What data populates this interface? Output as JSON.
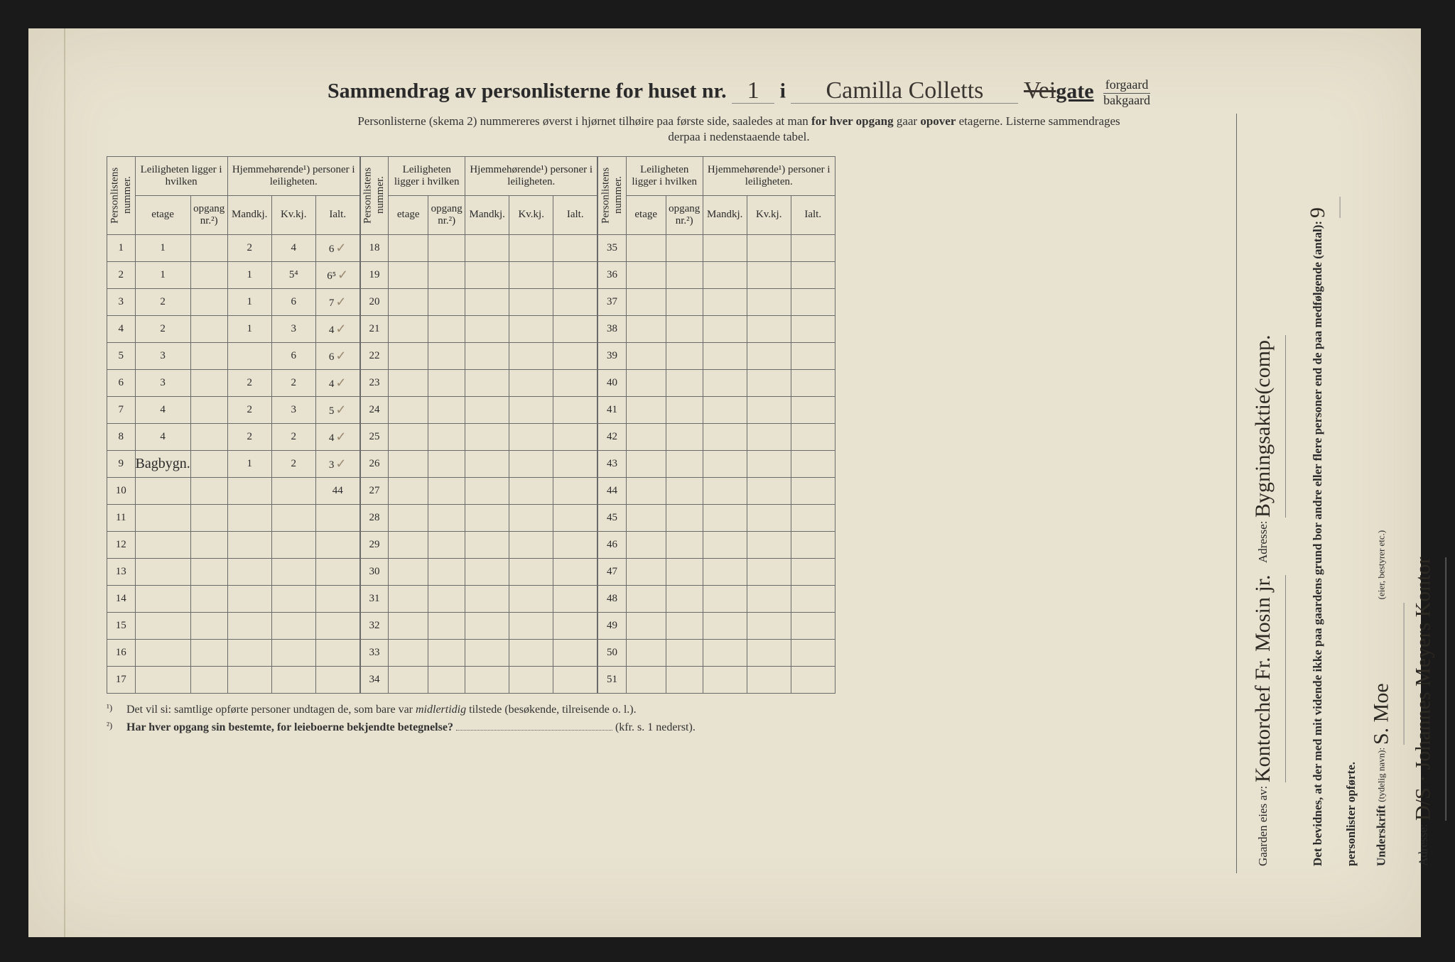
{
  "title": {
    "prefix": "Sammendrag av personlisterne for huset nr.",
    "house_nr": "1",
    "i": "i",
    "street_name": "Camilla Colletts",
    "gate_label": "gate",
    "gate_struck_prefix": "Vei",
    "forgaard": "forgaard",
    "bakgaard": "bakgaard"
  },
  "subtitle_line1": "Personlisterne (skema 2) nummereres øverst i hjørnet tilhøire paa første side, saaledes at man",
  "subtitle_bold": "for hver opgang",
  "subtitle_line1b": "gaar",
  "subtitle_bold2": "opover",
  "subtitle_line1c": "etagerne.   Listerne sammendrages",
  "subtitle_line2": "derpaa i nedenstaaende tabel.",
  "headers": {
    "personlistens_nummer": "Personlistens nummer.",
    "leiligheten": "Leiligheten ligger i hvilken",
    "hjemmehorende": "Hjemmehørende¹) personer i leiligheten.",
    "etage": "etage",
    "opgang": "opgang nr.²)",
    "mandkj": "Mandkj.",
    "kvkj": "Kv.kj.",
    "ialt": "Ialt."
  },
  "rows_block1": [
    {
      "n": "1",
      "etage": "1",
      "opg": "",
      "m": "2",
      "k": "4",
      "i": "6",
      "chk": "✓"
    },
    {
      "n": "2",
      "etage": "1",
      "opg": "",
      "m": "1",
      "k": "5⁴",
      "i": "6⁵",
      "chk": "✓"
    },
    {
      "n": "3",
      "etage": "2",
      "opg": "",
      "m": "1",
      "k": "6",
      "i": "7",
      "chk": "✓"
    },
    {
      "n": "4",
      "etage": "2",
      "opg": "",
      "m": "1",
      "k": "3",
      "i": "4",
      "chk": "✓"
    },
    {
      "n": "5",
      "etage": "3",
      "opg": "",
      "m": "",
      "k": "6",
      "i": "6",
      "chk": "✓"
    },
    {
      "n": "6",
      "etage": "3",
      "opg": "",
      "m": "2",
      "k": "2",
      "i": "4",
      "chk": "✓"
    },
    {
      "n": "7",
      "etage": "4",
      "opg": "",
      "m": "2",
      "k": "3",
      "i": "5",
      "chk": "✓"
    },
    {
      "n": "8",
      "etage": "4",
      "opg": "",
      "m": "2",
      "k": "2",
      "i": "4",
      "chk": "✓"
    },
    {
      "n": "9",
      "etage": "Bagbygn.",
      "opg": "",
      "m": "1",
      "k": "2",
      "i": "3",
      "chk": "✓"
    },
    {
      "n": "10",
      "etage": "",
      "opg": "",
      "m": "",
      "k": "",
      "i": "44",
      "chk": "",
      "pencil": true
    },
    {
      "n": "11",
      "etage": "",
      "opg": "",
      "m": "",
      "k": "",
      "i": "",
      "chk": ""
    },
    {
      "n": "12",
      "etage": "",
      "opg": "",
      "m": "",
      "k": "",
      "i": "",
      "chk": ""
    },
    {
      "n": "13",
      "etage": "",
      "opg": "",
      "m": "",
      "k": "",
      "i": "",
      "chk": ""
    },
    {
      "n": "14",
      "etage": "",
      "opg": "",
      "m": "",
      "k": "",
      "i": "",
      "chk": ""
    },
    {
      "n": "15",
      "etage": "",
      "opg": "",
      "m": "",
      "k": "",
      "i": "",
      "chk": ""
    },
    {
      "n": "16",
      "etage": "",
      "opg": "",
      "m": "",
      "k": "",
      "i": "",
      "chk": ""
    },
    {
      "n": "17",
      "etage": "",
      "opg": "",
      "m": "",
      "k": "",
      "i": "",
      "chk": ""
    }
  ],
  "row_nums_block2": [
    "18",
    "19",
    "20",
    "21",
    "22",
    "23",
    "24",
    "25",
    "26",
    "27",
    "28",
    "29",
    "30",
    "31",
    "32",
    "33",
    "34"
  ],
  "row_nums_block3": [
    "35",
    "36",
    "37",
    "38",
    "39",
    "40",
    "41",
    "42",
    "43",
    "44",
    "45",
    "46",
    "47",
    "48",
    "49",
    "50",
    "51"
  ],
  "footnotes": {
    "f1_num": "¹)",
    "f1": "Det vil si: samtlige opførte personer undtagen de, som bare var",
    "f1_it": "midlertidig",
    "f1b": "tilstede (besøkende, tilreisende o. l.).",
    "f2_num": "²)",
    "f2_bold": "Har hver opgang sin bestemte, for leieboerne bekjendte betegnelse?",
    "f2_tail": "(kfr. s. 1 nederst)."
  },
  "right": {
    "gaarden_eies_label": "Gaarden eies av:",
    "gaarden_eies_value": "Kontorchef Fr. Mosin jr.",
    "adresse1_label": "Adresse:",
    "adresse1_value": "Bygningsaktie(comp.",
    "bevidnes": "Det bevidnes, at der med mit vidende ikke paa gaardens grund bor andre eller flere personer end de paa medfølgende (antal):",
    "antal_value": "9",
    "opforte": "personlister opførte.",
    "underskrift_label": "Underskrift",
    "underskrift_paren": "(tydelig navn):",
    "underskrift_value": "S. Moe",
    "eier_note": "(eier, bestyrer etc.)",
    "adresse2_label": "Adresse:",
    "adresse2_value": "D/S · Johannes Meyers Kontor"
  }
}
